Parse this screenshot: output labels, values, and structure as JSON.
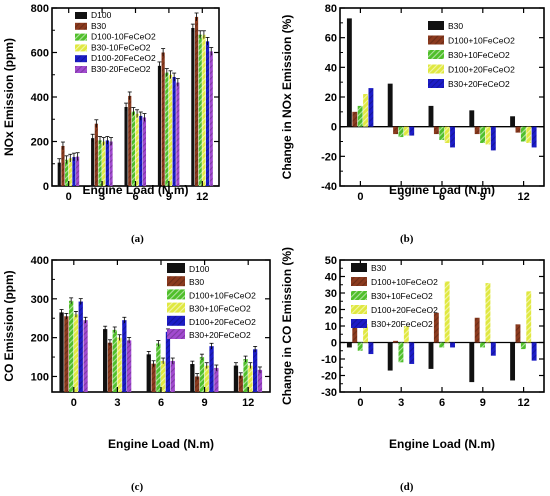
{
  "panels": [
    {
      "label": "(a)",
      "chart_data": {
        "type": "bar",
        "categories": [
          "0",
          "3",
          "6",
          "9",
          "12"
        ],
        "xlabel": "Engine Load (N.m)",
        "ylabel": "NOx Emission (ppm)",
        "ylim": [
          0,
          800
        ],
        "yticks": [
          0,
          200,
          400,
          600,
          800
        ],
        "zero_line": false,
        "error_bars": true,
        "legend_position": "top-left",
        "series": [
          {
            "name": "D100",
            "color": "#111111",
            "values": [
              105,
              215,
              355,
              540,
              710
            ]
          },
          {
            "name": "B30",
            "color": "#8b3a1e",
            "values": [
              180,
              280,
              405,
              600,
              760
            ]
          },
          {
            "name": "D100-10FeCeO2",
            "color": "#4fbf2a",
            "values": [
              118,
              205,
              335,
              510,
              680
            ]
          },
          {
            "name": "B30-10FeCeO2",
            "color": "#e0e840",
            "values": [
              125,
              200,
              325,
              500,
              680
            ]
          },
          {
            "name": "D100-20FeCeO2",
            "color": "#1c1cc8",
            "values": [
              130,
              205,
              315,
              490,
              650
            ]
          },
          {
            "name": "B30-20FeCeO2",
            "color": "#a24ad0",
            "values": [
              132,
              200,
              308,
              465,
              605
            ]
          }
        ]
      }
    },
    {
      "label": "(b)",
      "chart_data": {
        "type": "bar",
        "categories": [
          "0",
          "3",
          "6",
          "9",
          "12"
        ],
        "xlabel": "Engine Load (N.m)",
        "ylabel": "Change in NOx Emission (%)",
        "ylim": [
          -40,
          80
        ],
        "yticks": [
          -40,
          -20,
          0,
          20,
          40,
          60,
          80
        ],
        "zero_line": true,
        "error_bars": false,
        "legend_position": "top-right",
        "series": [
          {
            "name": "B30",
            "color": "#111111",
            "values": [
              73,
              29,
              14,
              11,
              7
            ]
          },
          {
            "name": "D100+10FeCeO2",
            "color": "#8b3a1e",
            "values": [
              10,
              -5,
              -5,
              -5,
              -4
            ]
          },
          {
            "name": "B30+10FeCeO2",
            "color": "#4fbf2a",
            "values": [
              14,
              -7,
              -9,
              -11,
              -10
            ]
          },
          {
            "name": "D100+20FeCeO2",
            "color": "#e0e840",
            "values": [
              22,
              -6,
              -11,
              -12,
              -11
            ]
          },
          {
            "name": "B30+20FeCeO2",
            "color": "#1c1cc8",
            "values": [
              26,
              -6,
              -14,
              -16,
              -14
            ]
          }
        ]
      }
    },
    {
      "label": "(c)",
      "chart_data": {
        "type": "bar",
        "categories": [
          "0",
          "3",
          "6",
          "9",
          "12"
        ],
        "xlabel": "Engine Load (N.m)",
        "ylabel": "CO Emission (ppm)",
        "ylim": [
          60,
          400
        ],
        "yticks": [
          100,
          200,
          300,
          400
        ],
        "zero_line": false,
        "error_bars": true,
        "legend_position": "top-right",
        "series": [
          {
            "name": "D100",
            "color": "#111111",
            "values": [
              265,
              222,
              157,
              132,
              128
            ]
          },
          {
            "name": "B30",
            "color": "#8b3a1e",
            "values": [
              255,
              187,
              133,
              100,
              102
            ]
          },
          {
            "name": "D100+10FeCeO2",
            "color": "#4fbf2a",
            "values": [
              295,
              220,
              185,
              150,
              145
            ]
          },
          {
            "name": "B30+10FeCeO2",
            "color": "#e0e840",
            "values": [
              260,
              200,
              140,
              128,
              128
            ]
          },
          {
            "name": "D100+20FeCeO2",
            "color": "#1c1cc8",
            "values": [
              293,
              245,
              215,
              178,
              170
            ]
          },
          {
            "name": "B30+20FeCeO2",
            "color": "#a24ad0",
            "values": [
              245,
              193,
              140,
              122,
              117
            ]
          }
        ]
      }
    },
    {
      "label": "(d)",
      "chart_data": {
        "type": "bar",
        "categories": [
          "0",
          "3",
          "6",
          "9",
          "12"
        ],
        "xlabel": "Engine Load (N.m)",
        "ylabel": "Change in CO Emission (%)",
        "ylim": [
          -30,
          50
        ],
        "yticks": [
          -30,
          -20,
          -10,
          0,
          10,
          20,
          30,
          40,
          50
        ],
        "zero_line": true,
        "error_bars": false,
        "legend_position": "top-left",
        "series": [
          {
            "name": "B30",
            "color": "#111111",
            "values": [
              -3,
              -17,
              -16,
              -24,
              -23
            ]
          },
          {
            "name": "D100+10FeCeO2",
            "color": "#8b3a1e",
            "values": [
              11,
              1,
              18,
              15,
              11
            ]
          },
          {
            "name": "B30+10FeCeO2",
            "color": "#4fbf2a",
            "values": [
              -5,
              -12,
              -3,
              -3,
              -4
            ]
          },
          {
            "name": "D100+20FeCeO2",
            "color": "#e0e840",
            "values": [
              11,
              10,
              37,
              36,
              31
            ]
          },
          {
            "name": "B30+20FeCeO2",
            "color": "#1c1cc8",
            "values": [
              -7,
              -13,
              -3,
              -8,
              -11
            ]
          }
        ]
      }
    }
  ]
}
